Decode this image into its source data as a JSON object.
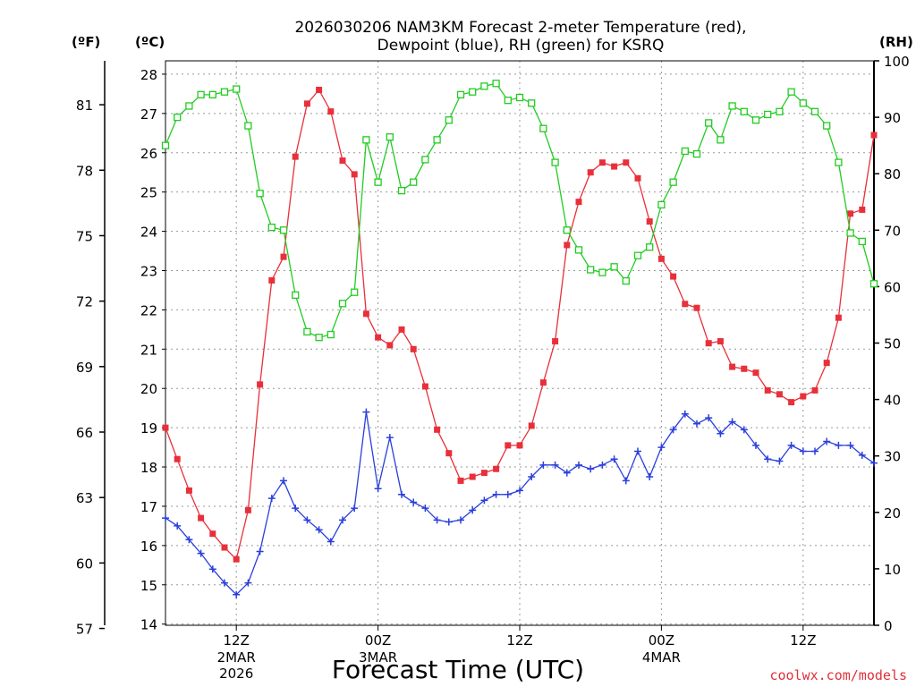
{
  "chart_data": {
    "type": "line",
    "title_line1": "2026030206 NAM3KM Forecast 2-meter Temperature (red),",
    "title_line2": "Dewpoint (blue), RH (green) for KSRQ",
    "xlabel": "Forecast Time (UTC)",
    "credit": "coolwx.com/models",
    "unit_f": "(ºF)",
    "unit_c": "(ºC)",
    "unit_rh": "(RH)",
    "ylim_c": [
      13.97,
      28.34
    ],
    "ylim_rh": [
      0,
      100
    ],
    "x_range_hours": [
      0,
      60
    ],
    "x_ticks": [
      {
        "hour": 6,
        "label": "12Z",
        "sub1": "2MAR",
        "sub2": "2026"
      },
      {
        "hour": 18,
        "label": "00Z",
        "sub1": "3MAR",
        "sub2": ""
      },
      {
        "hour": 30,
        "label": "12Z",
        "sub1": "",
        "sub2": ""
      },
      {
        "hour": 42,
        "label": "00Z",
        "sub1": "4MAR",
        "sub2": ""
      },
      {
        "hour": 54,
        "label": "12Z",
        "sub1": "",
        "sub2": ""
      }
    ],
    "y_ticks_c": [
      14,
      15,
      16,
      17,
      18,
      19,
      20,
      21,
      22,
      23,
      24,
      25,
      26,
      27,
      28
    ],
    "y_ticks_f": [
      57,
      60,
      63,
      66,
      69,
      72,
      75,
      78,
      81
    ],
    "y_ticks_rh": [
      0,
      10,
      20,
      30,
      40,
      50,
      60,
      70,
      80,
      90,
      100
    ],
    "colors": {
      "temperature": "#e8303a",
      "dewpoint": "#2a3fdc",
      "rh": "#22cc22",
      "grid": "#999999"
    },
    "series": [
      {
        "name": "Temperature (C)",
        "marker": "filled-square",
        "values": [
          19.0,
          18.2,
          17.4,
          16.7,
          16.3,
          15.95,
          15.65,
          16.9,
          20.1,
          22.75,
          23.35,
          25.9,
          27.25,
          27.6,
          27.05,
          25.8,
          25.45,
          21.9,
          21.3,
          21.1,
          21.5,
          21.0,
          20.05,
          18.95,
          18.35,
          17.65,
          17.75,
          17.85,
          17.95,
          18.55,
          18.55,
          19.05,
          20.15,
          21.2,
          23.65,
          24.75,
          25.5,
          25.75,
          25.65,
          25.75,
          25.35,
          24.25,
          23.3,
          22.85,
          22.15,
          22.05,
          21.15,
          21.2,
          20.55,
          20.5,
          20.4,
          19.95,
          19.85,
          19.65,
          19.8,
          19.95,
          20.65,
          21.8,
          24.45,
          24.55,
          26.45
        ]
      },
      {
        "name": "Dewpoint (C)",
        "marker": "plus",
        "values": [
          16.7,
          16.5,
          16.15,
          15.8,
          15.4,
          15.05,
          14.75,
          15.05,
          15.85,
          17.2,
          17.65,
          16.95,
          16.65,
          16.4,
          16.1,
          16.65,
          16.95,
          19.4,
          17.45,
          18.75,
          17.3,
          17.1,
          16.95,
          16.65,
          16.6,
          16.65,
          16.9,
          17.15,
          17.3,
          17.3,
          17.4,
          17.75,
          18.05,
          18.05,
          17.85,
          18.05,
          17.95,
          18.05,
          18.2,
          17.65,
          18.4,
          17.75,
          18.5,
          18.95,
          19.35,
          19.1,
          19.25,
          18.85,
          19.15,
          18.95,
          18.55,
          18.2,
          18.15,
          18.55,
          18.4,
          18.4,
          18.65,
          18.55,
          18.55,
          18.3,
          18.1
        ]
      },
      {
        "name": "RH (%)",
        "marker": "open-square",
        "values": [
          85,
          90,
          92,
          94,
          94,
          94.5,
          95,
          88.5,
          76.5,
          70.5,
          70,
          58.5,
          52,
          51,
          51.5,
          57,
          59,
          86,
          78.5,
          86.5,
          77,
          78.5,
          82.5,
          86,
          89.5,
          94,
          94.5,
          95.5,
          96,
          93,
          93.5,
          92.5,
          88,
          82,
          70,
          66.5,
          63,
          62.5,
          63.5,
          61,
          65.5,
          67,
          74.5,
          78.5,
          84,
          83.5,
          89,
          86,
          92,
          91,
          89.5,
          90.5,
          91,
          94.5,
          92.5,
          91,
          88.5,
          82,
          69.5,
          68,
          60.5
        ]
      }
    ]
  }
}
